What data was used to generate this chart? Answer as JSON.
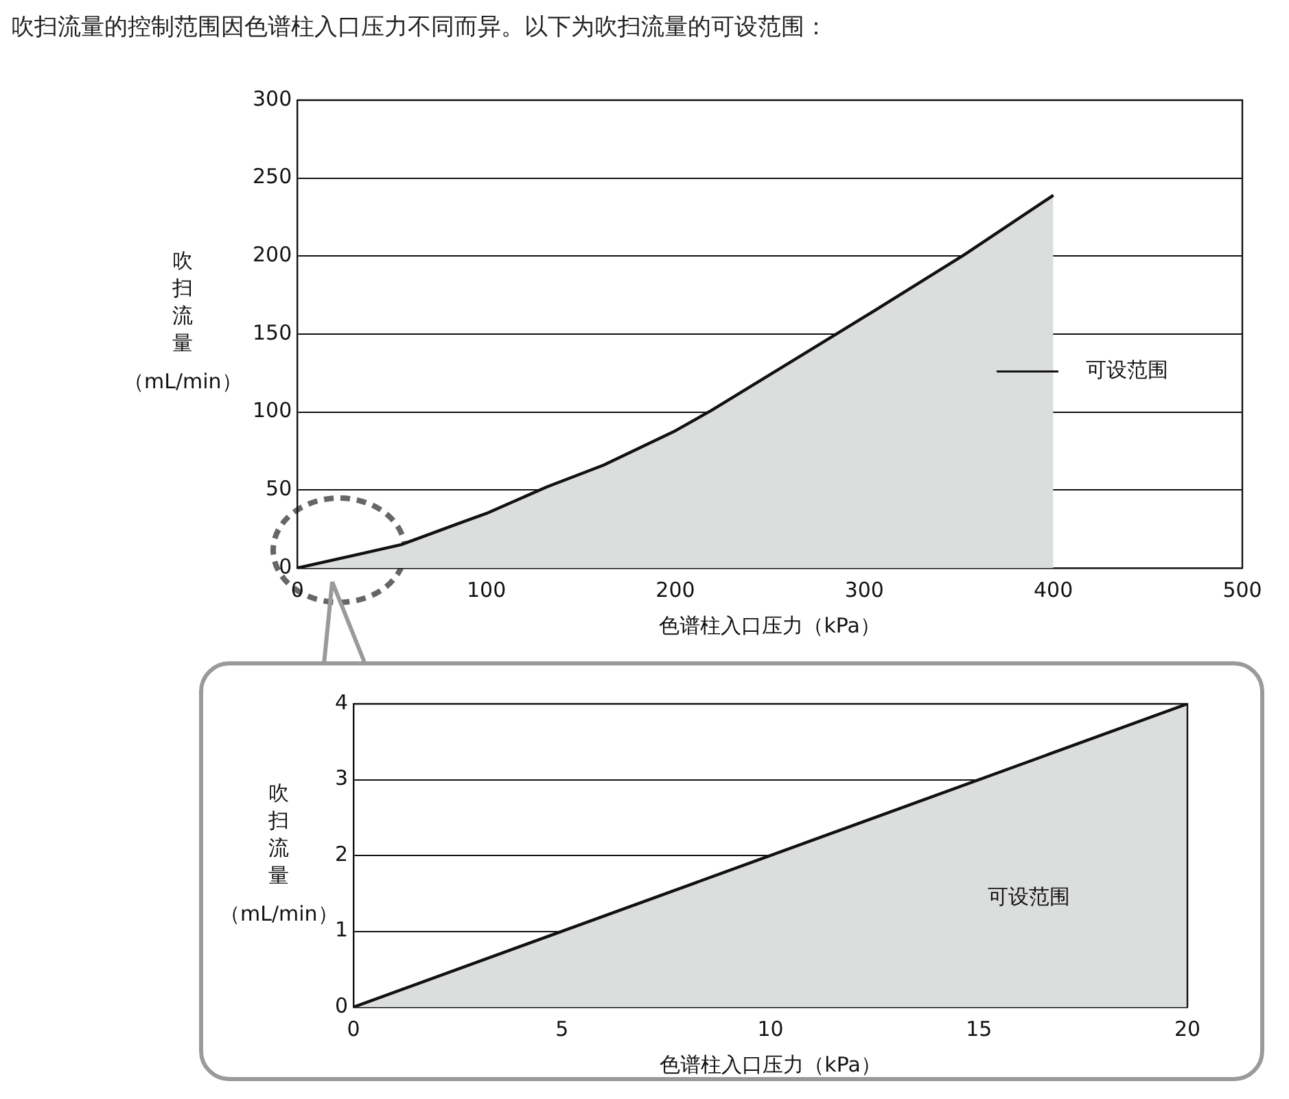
{
  "chart_data": [
    {
      "type": "area",
      "title": "吹扫流量的控制范围因色谱柱入口压力不同而异。以下为吹扫流量的可设范围：",
      "xlabel": "色谱柱入口压力（kPa）",
      "ylabel": "吹扫流量（mL/min）",
      "series": [
        {
          "name": "可设范围",
          "color": "#dcdddd",
          "x": [
            0,
            55,
            84,
            100,
            132,
            162,
            200,
            219,
            300,
            353,
            400
          ],
          "values": [
            0,
            15,
            28,
            35,
            52,
            66,
            88,
            101,
            161,
            201,
            239
          ]
        }
      ],
      "xlim": [
        0,
        500
      ],
      "xticks": [
        0,
        100,
        200,
        300,
        400,
        500
      ],
      "ylim": [
        0,
        300
      ],
      "yticks": [
        0,
        50,
        100,
        150,
        200,
        250,
        300
      ],
      "grid": "y",
      "legend": "right"
    },
    {
      "type": "area",
      "xlabel": "色谱柱入口压力（kPa）",
      "ylabel": "吹扫流量（mL/min）",
      "series": [
        {
          "color": "#dcdddd",
          "x": [
            0,
            20
          ],
          "values": [
            0,
            4
          ]
        }
      ],
      "xlim": [
        0,
        20
      ],
      "xticks": [
        0,
        5,
        10,
        15,
        20
      ],
      "ylim": [
        0,
        4
      ],
      "yticks": [
        0,
        1,
        2,
        3,
        4
      ],
      "grid": "y",
      "annotations": [
        "可设范围"
      ]
    }
  ]
}
